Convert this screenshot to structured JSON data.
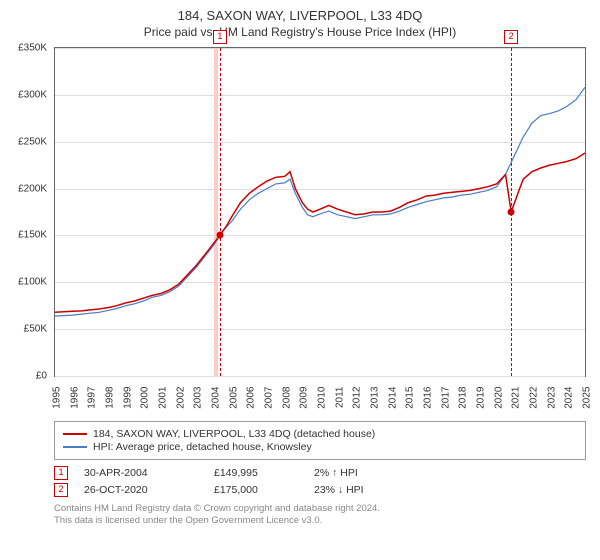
{
  "title": "184, SAXON WAY, LIVERPOOL, L33 4DQ",
  "subtitle": "Price paid vs. HM Land Registry's House Price Index (HPI)",
  "chart": {
    "type": "line",
    "x_years": [
      "1995",
      "1996",
      "1997",
      "1998",
      "1999",
      "2000",
      "2001",
      "2002",
      "2003",
      "2004",
      "2005",
      "2006",
      "2007",
      "2008",
      "2009",
      "2010",
      "2011",
      "2012",
      "2013",
      "2014",
      "2015",
      "2016",
      "2017",
      "2018",
      "2019",
      "2020",
      "2021",
      "2022",
      "2023",
      "2024",
      "2025"
    ],
    "y_ticks": [
      0,
      50000,
      100000,
      150000,
      200000,
      250000,
      300000,
      350000
    ],
    "y_tick_labels": [
      "£0",
      "£50K",
      "£100K",
      "£150K",
      "£200K",
      "£250K",
      "£300K",
      "£350K"
    ],
    "ylim": [
      0,
      350000
    ],
    "xlim_index": [
      0,
      30
    ],
    "background_color": "#ffffff",
    "grid_color": "#dddddd",
    "border_color": "#666666",
    "highlight_band": {
      "x0_idx": 9.0,
      "x1_idx": 9.25,
      "color": "#ffcccc"
    },
    "event_vlines": [
      {
        "x_idx": 9.33,
        "color": "#cc0000",
        "dash": "3,3"
      },
      {
        "x_idx": 25.82,
        "color": "#cc0000",
        "dash": "3,3"
      }
    ],
    "event_markers": [
      {
        "x_idx": 9.33,
        "label": "1",
        "color": "#cc0000"
      },
      {
        "x_idx": 25.82,
        "label": "2",
        "color": "#cc0000"
      }
    ],
    "series": [
      {
        "id": "property",
        "label": "184, SAXON WAY, LIVERPOOL, L33 4DQ (detached house)",
        "color": "#cc0000",
        "width": 1.5,
        "data": [
          [
            0,
            68000
          ],
          [
            0.5,
            68500
          ],
          [
            1,
            69000
          ],
          [
            1.5,
            69500
          ],
          [
            2,
            70500
          ],
          [
            2.5,
            71500
          ],
          [
            3,
            73000
          ],
          [
            3.5,
            75000
          ],
          [
            4,
            78000
          ],
          [
            4.5,
            80000
          ],
          [
            5,
            83000
          ],
          [
            5.5,
            86000
          ],
          [
            6,
            88000
          ],
          [
            6.5,
            92000
          ],
          [
            7,
            98000
          ],
          [
            7.5,
            108000
          ],
          [
            8,
            118000
          ],
          [
            8.5,
            130000
          ],
          [
            9,
            142000
          ],
          [
            9.33,
            149995
          ],
          [
            9.33,
            149995
          ],
          [
            9.7,
            160000
          ],
          [
            10,
            170000
          ],
          [
            10.5,
            185000
          ],
          [
            11,
            195000
          ],
          [
            11.5,
            202000
          ],
          [
            12,
            208000
          ],
          [
            12.5,
            212000
          ],
          [
            13,
            213000
          ],
          [
            13.3,
            218000
          ],
          [
            13.6,
            200000
          ],
          [
            14,
            185000
          ],
          [
            14.3,
            178000
          ],
          [
            14.6,
            175000
          ],
          [
            15,
            178000
          ],
          [
            15.5,
            182000
          ],
          [
            16,
            178000
          ],
          [
            16.5,
            175000
          ],
          [
            17,
            172000
          ],
          [
            17.5,
            173000
          ],
          [
            18,
            175000
          ],
          [
            18.5,
            175000
          ],
          [
            19,
            176000
          ],
          [
            19.5,
            180000
          ],
          [
            20,
            185000
          ],
          [
            20.5,
            188000
          ],
          [
            21,
            192000
          ],
          [
            21.5,
            193000
          ],
          [
            22,
            195000
          ],
          [
            22.5,
            196000
          ],
          [
            23,
            197000
          ],
          [
            23.5,
            198000
          ],
          [
            24,
            200000
          ],
          [
            24.5,
            202000
          ],
          [
            25,
            205000
          ],
          [
            25.5,
            215000
          ],
          [
            25.82,
            175000
          ],
          [
            25.82,
            175000
          ],
          [
            26.2,
            195000
          ],
          [
            26.5,
            210000
          ],
          [
            27,
            218000
          ],
          [
            27.5,
            222000
          ],
          [
            28,
            225000
          ],
          [
            28.5,
            227000
          ],
          [
            29,
            229000
          ],
          [
            29.5,
            232000
          ],
          [
            30,
            238000
          ]
        ]
      },
      {
        "id": "hpi",
        "label": "HPI: Average price, detached house, Knowsley",
        "color": "#4a7bc8",
        "width": 1.2,
        "data": [
          [
            0,
            64000
          ],
          [
            0.5,
            64500
          ],
          [
            1,
            65000
          ],
          [
            1.5,
            66000
          ],
          [
            2,
            67000
          ],
          [
            2.5,
            68000
          ],
          [
            3,
            70000
          ],
          [
            3.5,
            72000
          ],
          [
            4,
            75000
          ],
          [
            4.5,
            77000
          ],
          [
            5,
            80000
          ],
          [
            5.5,
            84000
          ],
          [
            6,
            86000
          ],
          [
            6.5,
            90000
          ],
          [
            7,
            96000
          ],
          [
            7.5,
            106000
          ],
          [
            8,
            116000
          ],
          [
            8.5,
            128000
          ],
          [
            9,
            140000
          ],
          [
            9.5,
            155000
          ],
          [
            10,
            165000
          ],
          [
            10.5,
            178000
          ],
          [
            11,
            188000
          ],
          [
            11.5,
            195000
          ],
          [
            12,
            200000
          ],
          [
            12.5,
            205000
          ],
          [
            13,
            206000
          ],
          [
            13.3,
            210000
          ],
          [
            13.6,
            195000
          ],
          [
            14,
            180000
          ],
          [
            14.3,
            172000
          ],
          [
            14.6,
            170000
          ],
          [
            15,
            173000
          ],
          [
            15.5,
            176000
          ],
          [
            16,
            172000
          ],
          [
            16.5,
            170000
          ],
          [
            17,
            168000
          ],
          [
            17.5,
            170000
          ],
          [
            18,
            172000
          ],
          [
            18.5,
            172000
          ],
          [
            19,
            173000
          ],
          [
            19.5,
            176000
          ],
          [
            20,
            180000
          ],
          [
            20.5,
            183000
          ],
          [
            21,
            186000
          ],
          [
            21.5,
            188000
          ],
          [
            22,
            190000
          ],
          [
            22.5,
            191000
          ],
          [
            23,
            193000
          ],
          [
            23.5,
            194000
          ],
          [
            24,
            196000
          ],
          [
            24.5,
            198000
          ],
          [
            25,
            202000
          ],
          [
            25.5,
            215000
          ],
          [
            26,
            235000
          ],
          [
            26.5,
            255000
          ],
          [
            27,
            270000
          ],
          [
            27.5,
            278000
          ],
          [
            28,
            280000
          ],
          [
            28.5,
            283000
          ],
          [
            29,
            288000
          ],
          [
            29.5,
            295000
          ],
          [
            30,
            308000
          ]
        ]
      }
    ],
    "sale_points": [
      {
        "x_idx": 9.33,
        "y": 149995,
        "color": "#cc0000"
      },
      {
        "x_idx": 25.82,
        "y": 175000,
        "color": "#cc0000"
      }
    ],
    "title_fontsize": 13,
    "subtitle_fontsize": 12,
    "axis_label_fontsize": 10
  },
  "legend": {
    "items": [
      {
        "color": "#cc0000",
        "label": "184, SAXON WAY, LIVERPOOL, L33 4DQ (detached house)"
      },
      {
        "color": "#4a7bc8",
        "label": "HPI: Average price, detached house, Knowsley"
      }
    ]
  },
  "transactions": [
    {
      "marker": "1",
      "marker_color": "#cc0000",
      "date": "30-APR-2004",
      "price": "£149,995",
      "pct": "2% ↑ HPI"
    },
    {
      "marker": "2",
      "marker_color": "#cc0000",
      "date": "26-OCT-2020",
      "price": "£175,000",
      "pct": "23% ↓ HPI"
    }
  ],
  "footer": {
    "line1": "Contains HM Land Registry data © Crown copyright and database right 2024.",
    "line2": "This data is licensed under the Open Government Licence v3.0."
  }
}
